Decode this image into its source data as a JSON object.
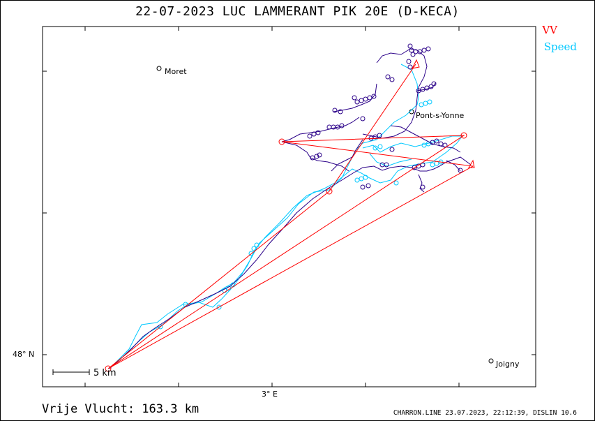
{
  "title": "22-07-2023   LUC LAMMERANT   PIK 20E (D-KECA)",
  "legend": {
    "vv": {
      "label": "VV",
      "color": "#ff0000"
    },
    "speed": {
      "label": "Speed",
      "color": "#00c8ff"
    }
  },
  "track_color": "#2a0088",
  "places": [
    {
      "name": "Moret"
    },
    {
      "name": "Pont-s-Yonne"
    },
    {
      "name": "Joigny"
    }
  ],
  "axes": {
    "lat_label": "48° N",
    "lon_label": "3° E"
  },
  "scale_bar": {
    "label": "5 km"
  },
  "footer": {
    "distance": "Vrije Vlucht:  163.3 km",
    "info": "CHARRON.LINE 23.07.2023, 22:12:39, DISLIN 10.6"
  }
}
